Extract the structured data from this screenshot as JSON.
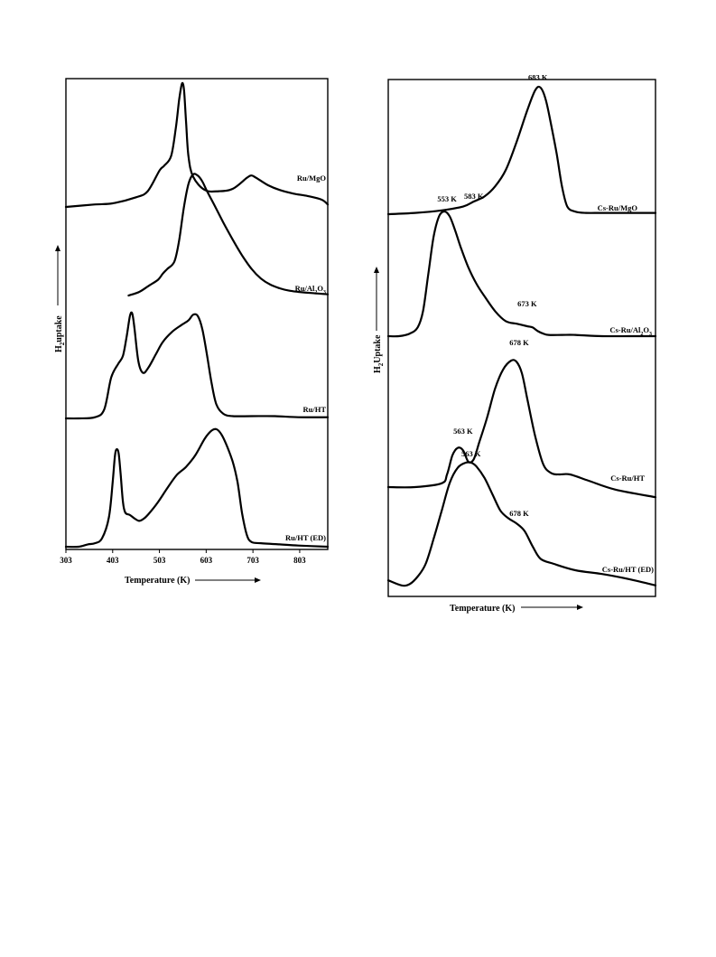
{
  "chart_data": [
    {
      "type": "line",
      "title": "",
      "xlabel": "Temperature (K)",
      "ylabel": "H2 uptake",
      "ylabel_parts": {
        "pre": "H",
        "sub": "2",
        "post": "uptake"
      },
      "xticks": [
        "303",
        "403",
        "503",
        "603",
        "703",
        "803"
      ],
      "xlim": [
        303,
        863
      ],
      "series": [
        {
          "name": "Ru/MgO",
          "name_parts": {
            "pre": "Ru/MgO"
          },
          "peaks_K": [
            552,
            698
          ],
          "x": [
            303,
            363,
            403,
            453,
            478,
            503,
            513,
            528,
            538,
            545,
            550,
            553,
            556,
            560,
            565,
            575,
            600,
            630,
            660,
            690,
            700,
            710,
            735,
            760,
            790,
            820,
            850,
            863
          ],
          "y": [
            0.0,
            0.02,
            0.03,
            0.08,
            0.13,
            0.3,
            0.34,
            0.42,
            0.65,
            0.88,
            1.0,
            1.02,
            0.95,
            0.7,
            0.42,
            0.25,
            0.14,
            0.13,
            0.15,
            0.24,
            0.26,
            0.24,
            0.18,
            0.14,
            0.11,
            0.09,
            0.06,
            0.02
          ]
        },
        {
          "name": "Ru/Al2O3",
          "name_parts": {
            "pre": "Ru/Al",
            "sub": "2",
            "mid": "O",
            "sub2": "3"
          },
          "peaks_K": [
            583
          ],
          "x": [
            437,
            460,
            480,
            500,
            510,
            520,
            535,
            545,
            555,
            565,
            575,
            585,
            595,
            605,
            620,
            640,
            660,
            680,
            700,
            720,
            740,
            760,
            780,
            800,
            830,
            863
          ],
          "y": [
            0.0,
            0.03,
            0.08,
            0.13,
            0.18,
            0.22,
            0.28,
            0.45,
            0.72,
            0.92,
            1.0,
            0.99,
            0.94,
            0.86,
            0.75,
            0.6,
            0.46,
            0.33,
            0.22,
            0.14,
            0.09,
            0.06,
            0.04,
            0.03,
            0.02,
            0.01
          ]
        },
        {
          "name": "Ru/HT",
          "name_parts": {
            "pre": "Ru/HT"
          },
          "peaks_K": [
            443,
            583
          ],
          "x": [
            303,
            330,
            365,
            385,
            400,
            415,
            425,
            433,
            440,
            445,
            450,
            458,
            468,
            480,
            495,
            510,
            530,
            550,
            565,
            575,
            585,
            595,
            605,
            615,
            625,
            640,
            660,
            700,
            750,
            800,
            863
          ],
          "y": [
            0.0,
            0.0,
            0.01,
            0.08,
            0.36,
            0.48,
            0.55,
            0.72,
            0.9,
            0.92,
            0.78,
            0.5,
            0.4,
            0.45,
            0.56,
            0.67,
            0.76,
            0.82,
            0.86,
            0.91,
            0.9,
            0.78,
            0.55,
            0.3,
            0.12,
            0.04,
            0.02,
            0.02,
            0.02,
            0.01,
            0.01
          ]
        },
        {
          "name": "Ru/HT (ED)",
          "name_parts": {
            "pre": "Ru/HT (ED)"
          },
          "peaks_K": [
            415,
            622
          ],
          "x": [
            303,
            330,
            350,
            365,
            380,
            395,
            403,
            408,
            412,
            416,
            420,
            425,
            430,
            440,
            450,
            460,
            470,
            480,
            500,
            520,
            540,
            560,
            580,
            600,
            615,
            625,
            635,
            645,
            660,
            670,
            680,
            690,
            700,
            720,
            760,
            800,
            863
          ],
          "y": [
            0.0,
            0.0,
            0.02,
            0.03,
            0.07,
            0.25,
            0.55,
            0.78,
            0.83,
            0.79,
            0.62,
            0.38,
            0.29,
            0.27,
            0.24,
            0.22,
            0.24,
            0.28,
            0.38,
            0.5,
            0.61,
            0.68,
            0.78,
            0.92,
            0.99,
            1.0,
            0.96,
            0.88,
            0.72,
            0.55,
            0.28,
            0.1,
            0.04,
            0.03,
            0.02,
            0.01,
            0.0
          ]
        }
      ]
    },
    {
      "type": "line",
      "title": "",
      "xlabel": "Temperature (K)",
      "ylabel": "H2 Uptake",
      "ylabel_parts": {
        "pre": "H",
        "sub": "2",
        "post": "Uptake"
      },
      "xticks": [],
      "xlim": [
        0,
        100
      ],
      "series": [
        {
          "name": "Cs-Ru/MgO",
          "name_parts": {
            "pre": "Cs-Ru/MgO"
          },
          "peak_labels": [
            {
              "text": "583 K",
              "x": 32,
              "y": 0.12
            },
            {
              "text": "683 K",
              "x": 56,
              "y": 1.06
            }
          ],
          "x": [
            0,
            10,
            20,
            28,
            32,
            36,
            40,
            44,
            48,
            52,
            55,
            57,
            59,
            61,
            63,
            65,
            67,
            70,
            74,
            80,
            90,
            100
          ],
          "y": [
            0.0,
            0.01,
            0.03,
            0.06,
            0.1,
            0.14,
            0.22,
            0.35,
            0.57,
            0.82,
            0.98,
            1.0,
            0.9,
            0.7,
            0.48,
            0.22,
            0.06,
            0.02,
            0.01,
            0.01,
            0.01,
            0.01
          ]
        },
        {
          "name": "Cs-Ru/Al2O3",
          "name_parts": {
            "pre": "Cs-Ru/Al",
            "sub": "2",
            "mid": "O",
            "sub2": "3"
          },
          "peak_labels": [
            {
              "text": "553 K",
              "x": 22,
              "y": 1.08
            },
            {
              "text": "673 K",
              "x": 52,
              "y": 0.24
            }
          ],
          "x": [
            0,
            4,
            8,
            11,
            13,
            15,
            17,
            19,
            21,
            23,
            25,
            27,
            30,
            33,
            36,
            40,
            44,
            48,
            52,
            54,
            56,
            58,
            60,
            65,
            70,
            80,
            90,
            100
          ],
          "y": [
            0.0,
            0.0,
            0.02,
            0.07,
            0.2,
            0.5,
            0.8,
            0.96,
            1.0,
            0.96,
            0.85,
            0.72,
            0.55,
            0.42,
            0.32,
            0.2,
            0.12,
            0.1,
            0.08,
            0.07,
            0.04,
            0.02,
            0.01,
            0.01,
            0.01,
            0.0,
            0.0,
            0.0
          ]
        },
        {
          "name": "Cs-Ru/HT",
          "name_parts": {
            "pre": "Cs-Ru/HT"
          },
          "peak_labels": [
            {
              "text": "563 K",
              "x": 28,
              "y": 0.42
            },
            {
              "text": "678 K",
              "x": 49,
              "y": 1.12
            }
          ],
          "x": [
            0,
            10,
            20,
            22,
            24,
            26,
            28,
            30,
            32,
            34,
            37,
            40,
            43,
            46,
            48,
            50,
            52,
            55,
            58,
            61,
            64,
            68,
            75,
            85,
            100
          ],
          "y": [
            0.0,
            0.0,
            0.03,
            0.1,
            0.25,
            0.31,
            0.29,
            0.2,
            0.22,
            0.35,
            0.55,
            0.78,
            0.93,
            1.0,
            0.99,
            0.9,
            0.7,
            0.4,
            0.18,
            0.11,
            0.1,
            0.1,
            0.05,
            -0.02,
            -0.08
          ]
        },
        {
          "name": "Cs-Ru/HT (ED)",
          "name_parts": {
            "pre": "Cs-Ru/HT (ED)"
          },
          "peak_labels": [
            {
              "text": "563 K",
              "x": 31,
              "y": 1.05
            },
            {
              "text": "678 K",
              "x": 49,
              "y": 0.58
            }
          ],
          "x": [
            0,
            5,
            8,
            11,
            14,
            17,
            20,
            23,
            26,
            29,
            31,
            33,
            36,
            39,
            42,
            45,
            48,
            51,
            54,
            57,
            62,
            70,
            80,
            90,
            100
          ],
          "y": [
            0.07,
            0.03,
            0.04,
            0.1,
            0.2,
            0.4,
            0.62,
            0.84,
            0.96,
            1.0,
            1.0,
            0.97,
            0.88,
            0.75,
            0.62,
            0.56,
            0.52,
            0.46,
            0.34,
            0.24,
            0.2,
            0.15,
            0.12,
            0.08,
            0.03
          ]
        }
      ]
    }
  ]
}
